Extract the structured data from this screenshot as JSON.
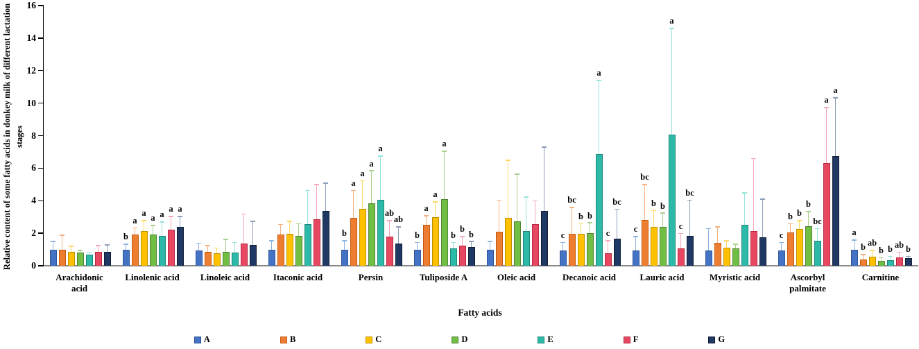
{
  "chart_data": {
    "type": "bar",
    "title": "",
    "xlabel": "Fatty acids",
    "ylabel": "Relative content of some fatty acids in donkey milk of different lactation stages",
    "ylim": [
      0,
      16
    ],
    "yticks": [
      0,
      2,
      4,
      6,
      8,
      10,
      12,
      14,
      16
    ],
    "grid": false,
    "legend_position": "bottom",
    "error_bars": "upper-only",
    "categories": [
      "Arachidonic acid",
      "Linolenic acid",
      "Linoleic acid",
      "Itaconic acid",
      "Persin",
      "Tuliposide A",
      "Oleic acid",
      "Decanoic acid",
      "Lauric acid",
      "Myristic acid",
      "Ascorbyl palmitate",
      "Carnitine"
    ],
    "series": [
      {
        "name": "A",
        "color": "#4472C4",
        "border_color": "#2F5597",
        "error_color": "#8DB4E2",
        "values": [
          1.0,
          1.0,
          0.95,
          1.0,
          1.0,
          1.0,
          1.0,
          0.95,
          0.95,
          0.95,
          0.95,
          1.0
        ],
        "error_tops": [
          1.45,
          1.3,
          1.35,
          1.5,
          1.5,
          1.4,
          1.45,
          1.4,
          1.75,
          2.25,
          1.4,
          1.55
        ],
        "sig_letters": [
          "",
          "b",
          "",
          "",
          "b",
          "b",
          "",
          "c",
          "c",
          "",
          "c",
          "a"
        ]
      },
      {
        "name": "B",
        "color": "#ED7D31",
        "border_color": "#C55A11",
        "error_color": "#F6B183",
        "values": [
          1.0,
          1.9,
          0.85,
          1.9,
          2.95,
          2.5,
          2.1,
          1.95,
          2.8,
          1.4,
          2.05,
          0.4
        ],
        "error_tops": [
          1.85,
          2.3,
          1.2,
          2.5,
          4.6,
          3.05,
          4.0,
          3.55,
          4.95,
          2.35,
          2.55,
          0.65
        ],
        "sig_letters": [
          "",
          "a",
          "",
          "",
          "a",
          "a",
          "",
          "bc",
          "bc",
          "",
          "b",
          "b"
        ]
      },
      {
        "name": "C",
        "color": "#FFC000",
        "border_color": "#BF9000",
        "error_color": "#FFD966",
        "values": [
          0.85,
          2.15,
          0.75,
          1.95,
          3.5,
          3.0,
          2.95,
          1.95,
          2.4,
          1.1,
          2.25,
          0.55
        ],
        "error_tops": [
          1.15,
          2.75,
          1.05,
          2.7,
          5.2,
          3.9,
          6.45,
          2.55,
          3.35,
          1.5,
          2.75,
          0.9
        ],
        "sig_letters": [
          "",
          "a",
          "",
          "",
          "a",
          "a",
          "",
          "b",
          "b",
          "",
          "b",
          "ab"
        ]
      },
      {
        "name": "D",
        "color": "#70BF44",
        "border_color": "#538135",
        "error_color": "#A9D18E",
        "values": [
          0.8,
          1.9,
          0.85,
          1.85,
          3.85,
          4.1,
          2.75,
          2.0,
          2.4,
          1.05,
          2.45,
          0.3
        ],
        "error_tops": [
          0.9,
          2.45,
          1.6,
          2.55,
          5.8,
          7.0,
          5.6,
          2.6,
          3.2,
          1.3,
          3.3,
          0.45
        ],
        "sig_letters": [
          "",
          "a",
          "",
          "",
          "a",
          "a",
          "",
          "b",
          "b",
          "",
          "b",
          "b"
        ]
      },
      {
        "name": "E",
        "color": "#2CB9A8",
        "border_color": "#1E8578",
        "error_color": "#97E5DC",
        "values": [
          0.7,
          1.85,
          0.8,
          2.55,
          4.05,
          1.05,
          2.15,
          6.85,
          8.05,
          2.5,
          1.55,
          0.35
        ],
        "error_tops": [
          0.8,
          2.65,
          1.4,
          4.6,
          6.7,
          1.4,
          4.2,
          11.35,
          14.55,
          4.45,
          2.25,
          0.55
        ],
        "sig_letters": [
          "",
          "a",
          "",
          "",
          "a",
          "b",
          "",
          "a",
          "a",
          "",
          "bc",
          "b"
        ]
      },
      {
        "name": "F",
        "color": "#E84762",
        "border_color": "#B32943",
        "error_color": "#F5A8B8",
        "values": [
          0.85,
          2.2,
          1.35,
          2.85,
          1.8,
          1.25,
          2.55,
          0.75,
          1.05,
          2.15,
          6.3,
          0.5
        ],
        "error_tops": [
          1.2,
          3.0,
          3.15,
          4.95,
          2.75,
          1.75,
          3.95,
          1.5,
          1.95,
          6.55,
          9.7,
          0.8
        ],
        "sig_letters": [
          "",
          "a",
          "",
          "",
          "ab",
          "b",
          "",
          "c",
          "c",
          "",
          "a",
          "ab"
        ]
      },
      {
        "name": "G",
        "color": "#1F3864",
        "border_color": "#101D33",
        "error_color": "#8E9DB8",
        "values": [
          0.85,
          2.4,
          1.3,
          3.35,
          1.35,
          1.15,
          3.35,
          1.65,
          1.85,
          1.75,
          6.75,
          0.45
        ],
        "error_tops": [
          1.25,
          3.0,
          2.7,
          5.05,
          2.35,
          1.45,
          7.25,
          3.45,
          4.0,
          4.05,
          10.3,
          0.55
        ],
        "sig_letters": [
          "",
          "a",
          "",
          "",
          "ab",
          "b",
          "",
          "bc",
          "bc",
          "",
          "a",
          "b"
        ]
      }
    ]
  }
}
